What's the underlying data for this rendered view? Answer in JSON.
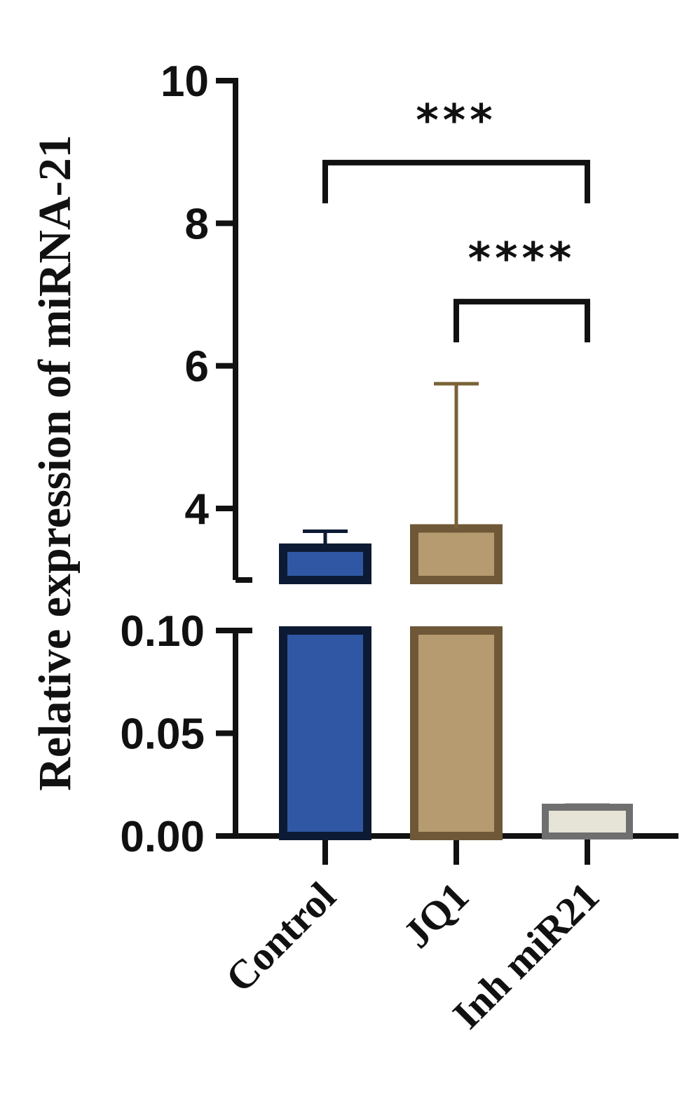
{
  "chart_data": {
    "type": "bar",
    "ylabel": "Relative expression of miRNA-21",
    "xlabel": "",
    "axis_break": true,
    "upper_segment": {
      "ylim": [
        3.0,
        10.0
      ],
      "ticks": [
        4,
        6,
        8,
        10
      ],
      "tick_labels": [
        "4",
        "6",
        "8",
        "10"
      ]
    },
    "lower_segment": {
      "ylim": [
        0.0,
        0.1
      ],
      "ticks": [
        0.0,
        0.05,
        0.1
      ],
      "tick_labels": [
        "0.00",
        "0.05",
        "0.10"
      ]
    },
    "categories": [
      "Control",
      "JQ1",
      "Inh miR21"
    ],
    "values": [
      3.45,
      3.72,
      0.014
    ],
    "error_upper": [
      3.68,
      5.75,
      0.015
    ],
    "colors": {
      "fill": [
        "#2f57a3",
        "#b79b70",
        "#e6e3d7"
      ],
      "stroke": [
        "#0d1a33",
        "#6e5838",
        "#6f6f6f"
      ],
      "error": [
        "#0d1a33",
        "#7a6238",
        "#6f6f6f"
      ]
    },
    "significance": [
      {
        "from": 0,
        "to": 2,
        "label": "***",
        "level": 8.85
      },
      {
        "from": 1,
        "to": 2,
        "label": "****",
        "level": 6.9
      }
    ],
    "grid": false,
    "legend": "none"
  }
}
